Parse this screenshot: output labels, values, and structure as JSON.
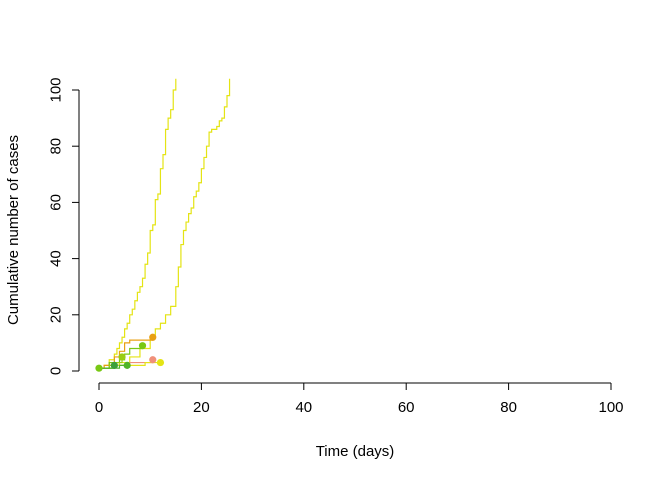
{
  "chart_data": {
    "type": "line",
    "title": "",
    "xlabel": "Time (days)",
    "ylabel": "Cumulative number of cases",
    "xlim": [
      0,
      100
    ],
    "ylim": [
      0,
      100
    ],
    "x_ticks": [
      0,
      20,
      40,
      60,
      80,
      100
    ],
    "y_ticks": [
      0,
      20,
      40,
      60,
      80,
      100
    ],
    "grid": false,
    "legend": "none",
    "series": [
      {
        "color": "#E4E414",
        "end_marker": false,
        "points": [
          [
            0,
            1
          ],
          [
            1,
            2
          ],
          [
            2,
            4
          ],
          [
            3,
            6
          ],
          [
            3.5,
            8
          ],
          [
            4,
            10
          ],
          [
            4.5,
            12
          ],
          [
            5,
            15
          ],
          [
            5.5,
            17
          ],
          [
            6,
            20
          ],
          [
            6.5,
            22
          ],
          [
            7,
            25
          ],
          [
            7.5,
            28
          ],
          [
            8,
            30
          ],
          [
            8.5,
            33
          ],
          [
            9,
            38
          ],
          [
            9.5,
            42
          ],
          [
            10,
            50
          ],
          [
            10.5,
            52
          ],
          [
            11,
            61
          ],
          [
            11.5,
            63
          ],
          [
            12,
            72
          ],
          [
            12.5,
            77
          ],
          [
            13,
            86
          ],
          [
            13.5,
            90
          ],
          [
            14,
            93
          ],
          [
            14.5,
            100
          ],
          [
            15,
            104
          ]
        ]
      },
      {
        "color": "#E4E414",
        "end_marker": false,
        "points": [
          [
            0,
            1
          ],
          [
            2,
            2
          ],
          [
            4,
            3
          ],
          [
            6,
            5
          ],
          [
            8,
            8
          ],
          [
            10,
            12
          ],
          [
            11,
            15
          ],
          [
            12,
            17
          ],
          [
            13,
            20
          ],
          [
            14,
            23
          ],
          [
            15,
            30
          ],
          [
            15.5,
            37
          ],
          [
            16,
            45
          ],
          [
            16.5,
            50
          ],
          [
            17,
            53
          ],
          [
            17.5,
            56
          ],
          [
            18,
            58
          ],
          [
            18.5,
            62
          ],
          [
            19,
            64
          ],
          [
            19.5,
            67
          ],
          [
            20,
            72
          ],
          [
            20.5,
            76
          ],
          [
            21,
            80
          ],
          [
            21.5,
            85
          ],
          [
            22,
            86
          ],
          [
            23,
            87
          ],
          [
            23.5,
            89
          ],
          [
            24,
            90
          ],
          [
            24.5,
            94
          ],
          [
            25,
            98
          ],
          [
            25.5,
            104
          ]
        ]
      },
      {
        "color": "#E8A014",
        "end_marker": true,
        "points": [
          [
            0,
            1
          ],
          [
            1,
            2
          ],
          [
            2,
            3
          ],
          [
            3,
            5
          ],
          [
            4,
            7
          ],
          [
            5,
            10
          ],
          [
            6,
            11
          ],
          [
            7,
            11
          ],
          [
            8,
            11
          ],
          [
            9,
            11
          ],
          [
            10.5,
            12
          ]
        ]
      },
      {
        "color": "#F0907A",
        "end_marker": true,
        "points": [
          [
            0,
            1
          ],
          [
            2,
            2
          ],
          [
            4,
            2
          ],
          [
            6,
            3
          ],
          [
            8,
            3
          ],
          [
            10.5,
            4
          ]
        ]
      },
      {
        "color": "#78C814",
        "end_marker": true,
        "points": [
          [
            0,
            1
          ],
          [
            2,
            3
          ],
          [
            4,
            4
          ],
          [
            5,
            6
          ],
          [
            6,
            8
          ],
          [
            7,
            8
          ],
          [
            8.5,
            9
          ]
        ]
      },
      {
        "color": "#9ACD14",
        "end_marker": true,
        "points": [
          [
            0,
            1
          ],
          [
            2,
            2
          ],
          [
            3,
            3
          ],
          [
            4.5,
            5
          ]
        ]
      },
      {
        "color": "#E4E414",
        "end_marker": true,
        "points": [
          [
            0,
            1
          ],
          [
            3,
            2
          ],
          [
            6,
            2
          ],
          [
            9,
            3
          ],
          [
            12,
            3
          ]
        ]
      },
      {
        "color": "#3CA03C",
        "end_marker": true,
        "points": [
          [
            0,
            1
          ],
          [
            1.5,
            1
          ],
          [
            3,
            2
          ]
        ]
      },
      {
        "color": "#50B428",
        "end_marker": true,
        "points": [
          [
            0,
            1
          ],
          [
            2,
            1
          ],
          [
            4,
            2
          ],
          [
            5.5,
            2
          ]
        ]
      },
      {
        "color": "#78C814",
        "end_marker": true,
        "points": [
          [
            0,
            1
          ]
        ]
      }
    ]
  }
}
